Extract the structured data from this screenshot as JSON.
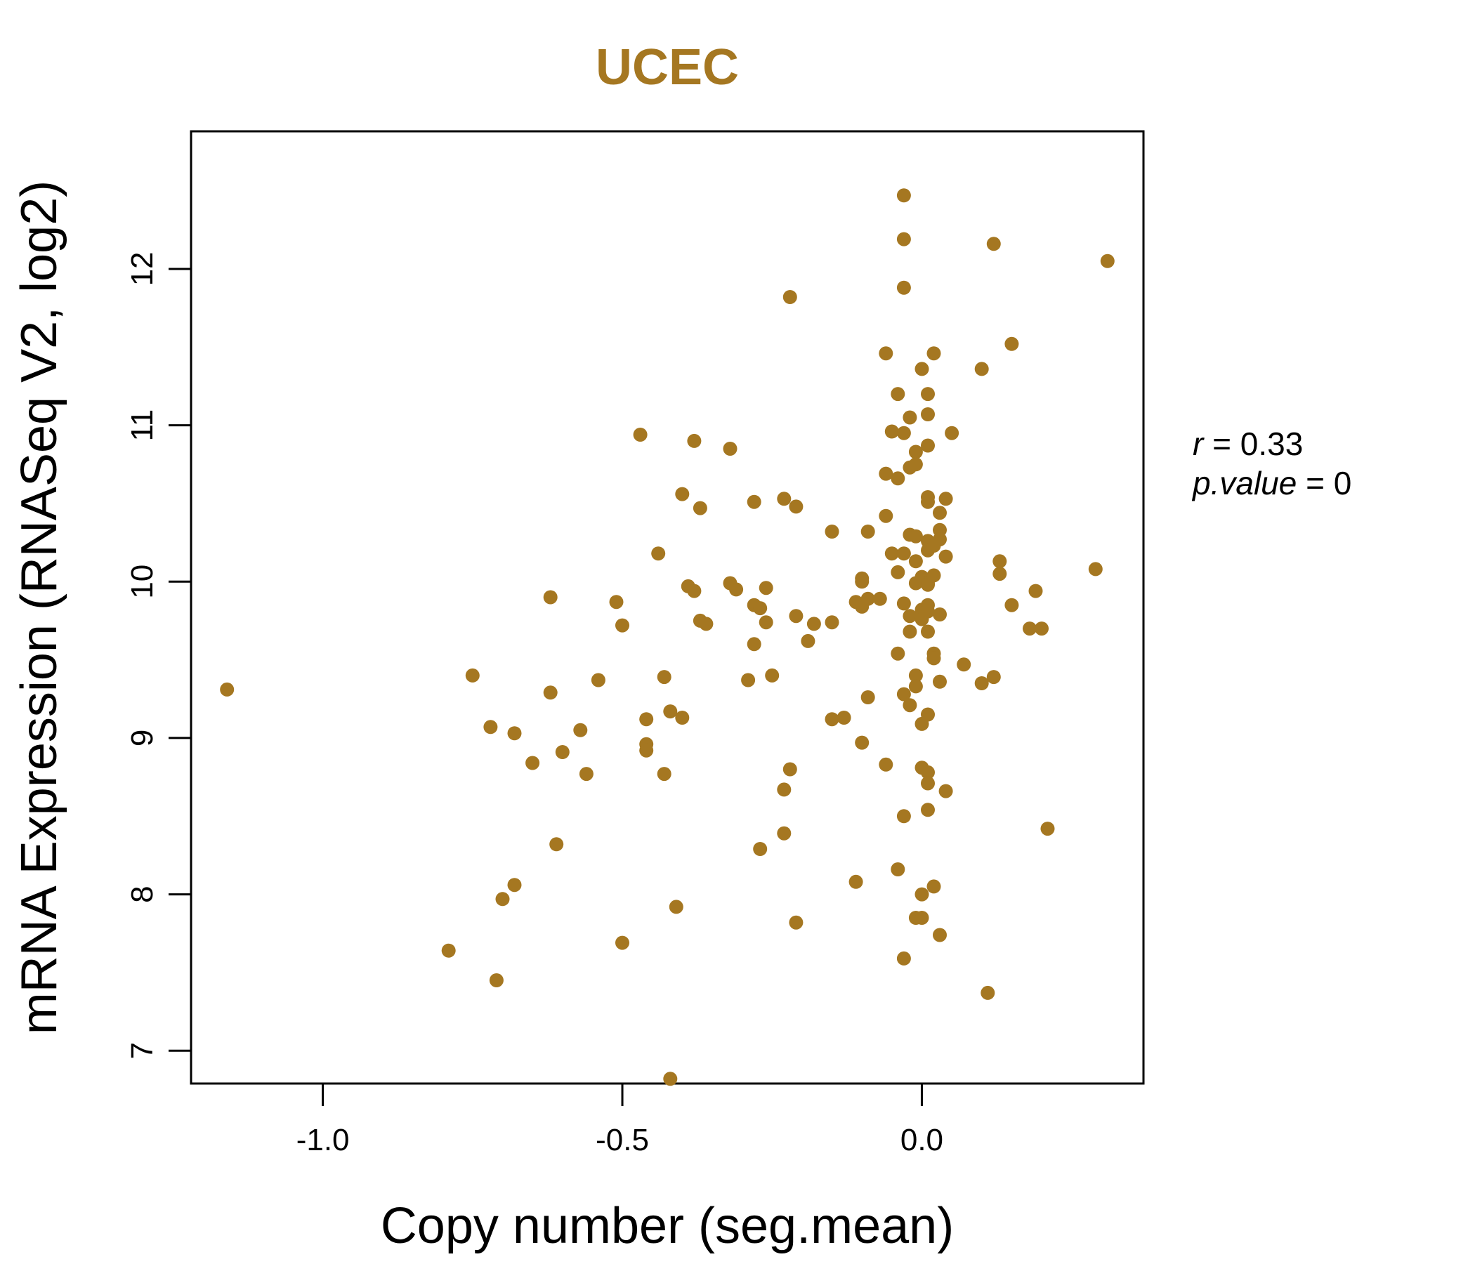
{
  "colors": {
    "accent": "#a57721",
    "axis": "#000000"
  },
  "chart_data": {
    "type": "scatter",
    "title": "UCEC",
    "xlabel": "Copy number (seg.mean)",
    "ylabel": "mRNA Expression (RNASeq V2, log2)",
    "xlim": [
      -1.22,
      0.37
    ],
    "ylim": [
      6.79,
      12.88
    ],
    "xticks": [
      -1.0,
      -0.5,
      0.0
    ],
    "xtick_labels": [
      "-1.0",
      "-0.5",
      "0.0"
    ],
    "yticks": [
      7,
      8,
      9,
      10,
      11,
      12
    ],
    "ytick_labels": [
      "7",
      "8",
      "9",
      "10",
      "11",
      "12"
    ],
    "grid": false,
    "stats": {
      "r_label": "r",
      "r_value": "0.33",
      "p_label": "p.value",
      "p_value": "0"
    },
    "points": [
      [
        -1.16,
        9.31
      ],
      [
        -0.79,
        7.64
      ],
      [
        -0.75,
        9.4
      ],
      [
        -0.72,
        9.07
      ],
      [
        -0.71,
        7.45
      ],
      [
        -0.7,
        7.97
      ],
      [
        -0.68,
        8.06
      ],
      [
        -0.68,
        9.03
      ],
      [
        -0.65,
        8.84
      ],
      [
        -0.62,
        9.9
      ],
      [
        -0.62,
        9.29
      ],
      [
        -0.61,
        8.32
      ],
      [
        -0.6,
        8.91
      ],
      [
        -0.57,
        9.05
      ],
      [
        -0.56,
        8.77
      ],
      [
        -0.54,
        9.37
      ],
      [
        -0.51,
        9.87
      ],
      [
        -0.5,
        9.72
      ],
      [
        -0.5,
        7.69
      ],
      [
        -0.47,
        10.94
      ],
      [
        -0.46,
        9.12
      ],
      [
        -0.46,
        8.96
      ],
      [
        -0.46,
        8.92
      ],
      [
        -0.44,
        10.18
      ],
      [
        -0.43,
        9.39
      ],
      [
        -0.43,
        8.77
      ],
      [
        -0.42,
        9.17
      ],
      [
        -0.42,
        6.82
      ],
      [
        -0.41,
        7.92
      ],
      [
        -0.4,
        10.56
      ],
      [
        -0.4,
        9.13
      ],
      [
        -0.39,
        9.97
      ],
      [
        -0.38,
        10.9
      ],
      [
        -0.38,
        9.94
      ],
      [
        -0.37,
        10.47
      ],
      [
        -0.37,
        9.75
      ],
      [
        -0.36,
        9.73
      ],
      [
        -0.32,
        10.85
      ],
      [
        -0.32,
        9.99
      ],
      [
        -0.31,
        9.95
      ],
      [
        -0.29,
        9.37
      ],
      [
        -0.28,
        10.51
      ],
      [
        -0.28,
        9.85
      ],
      [
        -0.28,
        9.6
      ],
      [
        -0.27,
        9.83
      ],
      [
        -0.27,
        8.29
      ],
      [
        -0.26,
        9.96
      ],
      [
        -0.26,
        9.74
      ],
      [
        -0.25,
        9.4
      ],
      [
        -0.23,
        10.53
      ],
      [
        -0.23,
        8.67
      ],
      [
        -0.23,
        8.39
      ],
      [
        -0.22,
        11.82
      ],
      [
        -0.22,
        8.8
      ],
      [
        -0.21,
        10.48
      ],
      [
        -0.21,
        9.78
      ],
      [
        -0.21,
        7.82
      ],
      [
        -0.19,
        9.62
      ],
      [
        -0.18,
        9.73
      ],
      [
        -0.15,
        10.32
      ],
      [
        -0.15,
        9.74
      ],
      [
        -0.15,
        9.12
      ],
      [
        -0.13,
        9.13
      ],
      [
        -0.11,
        9.87
      ],
      [
        -0.11,
        8.08
      ],
      [
        -0.1,
        10.02
      ],
      [
        -0.1,
        10.0
      ],
      [
        -0.1,
        9.84
      ],
      [
        -0.1,
        8.97
      ],
      [
        -0.09,
        9.89
      ],
      [
        -0.09,
        9.26
      ],
      [
        -0.09,
        10.32
      ],
      [
        -0.07,
        9.89
      ],
      [
        -0.06,
        11.46
      ],
      [
        -0.06,
        10.69
      ],
      [
        -0.06,
        10.42
      ],
      [
        -0.06,
        8.83
      ],
      [
        -0.05,
        10.96
      ],
      [
        -0.05,
        10.18
      ],
      [
        -0.04,
        11.2
      ],
      [
        -0.04,
        10.66
      ],
      [
        -0.04,
        10.06
      ],
      [
        -0.04,
        9.54
      ],
      [
        -0.04,
        8.16
      ],
      [
        -0.03,
        10.95
      ],
      [
        -0.03,
        10.18
      ],
      [
        -0.03,
        9.86
      ],
      [
        -0.03,
        8.5
      ],
      [
        -0.03,
        11.88
      ],
      [
        -0.03,
        12.19
      ],
      [
        -0.03,
        12.47
      ],
      [
        -0.03,
        9.28
      ],
      [
        -0.03,
        7.59
      ],
      [
        -0.02,
        11.05
      ],
      [
        -0.02,
        9.68
      ],
      [
        -0.02,
        9.78
      ],
      [
        -0.02,
        10.3
      ],
      [
        -0.02,
        10.73
      ],
      [
        -0.02,
        9.21
      ],
      [
        -0.01,
        10.83
      ],
      [
        -0.01,
        10.13
      ],
      [
        -0.01,
        9.99
      ],
      [
        -0.01,
        9.4
      ],
      [
        -0.01,
        9.33
      ],
      [
        -0.01,
        10.75
      ],
      [
        -0.01,
        10.29
      ],
      [
        -0.01,
        7.85
      ],
      [
        0.0,
        11.36
      ],
      [
        0.0,
        9.82
      ],
      [
        0.0,
        10.03
      ],
      [
        0.0,
        8.81
      ],
      [
        0.0,
        7.85
      ],
      [
        0.0,
        8.0
      ],
      [
        0.0,
        9.09
      ],
      [
        0.0,
        9.76
      ],
      [
        0.01,
        10.51
      ],
      [
        0.01,
        10.54
      ],
      [
        0.01,
        10.2
      ],
      [
        0.01,
        9.99
      ],
      [
        0.01,
        9.85
      ],
      [
        0.01,
        9.68
      ],
      [
        0.01,
        9.15
      ],
      [
        0.01,
        8.78
      ],
      [
        0.01,
        8.71
      ],
      [
        0.01,
        8.54
      ],
      [
        0.01,
        11.2
      ],
      [
        0.01,
        11.07
      ],
      [
        0.01,
        10.87
      ],
      [
        0.01,
        10.26
      ],
      [
        0.01,
        9.98
      ],
      [
        0.01,
        9.81
      ],
      [
        0.02,
        10.04
      ],
      [
        0.02,
        9.54
      ],
      [
        0.02,
        9.51
      ],
      [
        0.02,
        8.05
      ],
      [
        0.02,
        11.46
      ],
      [
        0.02,
        10.23
      ],
      [
        0.03,
        10.44
      ],
      [
        0.03,
        10.33
      ],
      [
        0.03,
        10.27
      ],
      [
        0.03,
        9.36
      ],
      [
        0.03,
        7.74
      ],
      [
        0.03,
        9.79
      ],
      [
        0.04,
        8.66
      ],
      [
        0.04,
        10.53
      ],
      [
        0.04,
        10.16
      ],
      [
        0.05,
        10.95
      ],
      [
        0.07,
        9.47
      ],
      [
        0.1,
        11.36
      ],
      [
        0.1,
        9.35
      ],
      [
        0.11,
        7.37
      ],
      [
        0.12,
        12.16
      ],
      [
        0.12,
        9.39
      ],
      [
        0.13,
        10.13
      ],
      [
        0.13,
        10.05
      ],
      [
        0.15,
        11.52
      ],
      [
        0.15,
        9.85
      ],
      [
        0.18,
        9.7
      ],
      [
        0.19,
        9.94
      ],
      [
        0.2,
        9.7
      ],
      [
        0.21,
        8.42
      ],
      [
        0.29,
        10.08
      ],
      [
        0.31,
        12.05
      ]
    ]
  }
}
